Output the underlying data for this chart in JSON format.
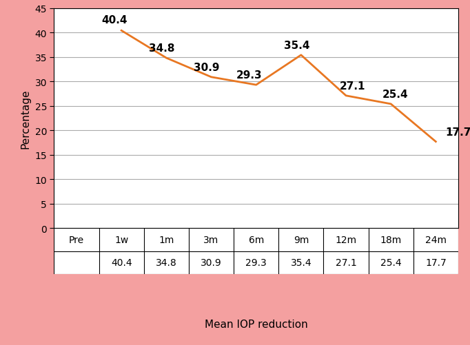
{
  "categories": [
    "Pre",
    "1w",
    "1m",
    "3m",
    "6m",
    "9m",
    "12m",
    "18m",
    "24m"
  ],
  "x_indices": [
    0,
    1,
    2,
    3,
    4,
    5,
    6,
    7,
    8
  ],
  "values": [
    null,
    40.4,
    34.8,
    30.9,
    29.3,
    35.4,
    27.1,
    25.4,
    17.7
  ],
  "line_color": "#E87722",
  "line_width": 2.0,
  "ylabel": "Percentage",
  "xlabel": "Mean IOP reduction",
  "ylim": [
    0,
    45
  ],
  "yticks": [
    0,
    5,
    10,
    15,
    20,
    25,
    30,
    35,
    40,
    45
  ],
  "background_color": "#F4A0A0",
  "plot_bg_color": "#FFFFFF",
  "grid_color": "#AAAAAA",
  "table_row1": [
    "Pre",
    "1w",
    "1m",
    "3m",
    "6m",
    "9m",
    "12m",
    "18m",
    "24m"
  ],
  "table_row2": [
    "",
    "40.4",
    "34.8",
    "30.9",
    "29.3",
    "35.4",
    "27.1",
    "25.4",
    "17.7"
  ],
  "label_fontsize": 11,
  "tick_fontsize": 10,
  "annotation_fontsize": 11,
  "table_fontsize": 10
}
